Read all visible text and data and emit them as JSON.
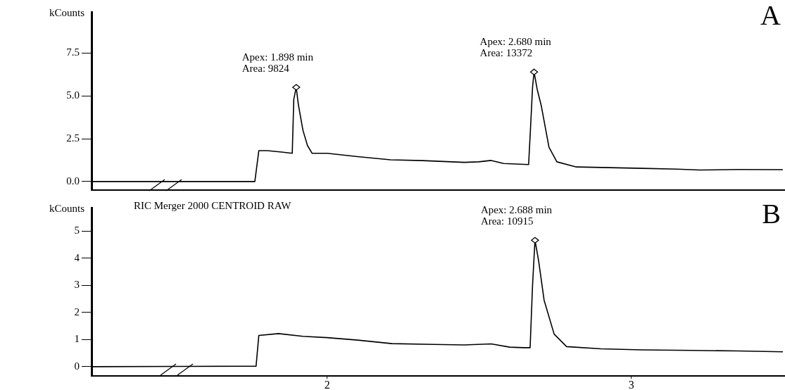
{
  "chart_data": [
    {
      "type": "line",
      "title": "A",
      "ylabel": "kCounts",
      "xlim": [
        1.225,
        3.505
      ],
      "ylim": [
        -0.5,
        9.9
      ],
      "yticks": [
        {
          "value": 0,
          "label": "0.0"
        },
        {
          "value": 2.5,
          "label": "2.5"
        },
        {
          "value": 5,
          "label": "5.0"
        },
        {
          "value": 7.5,
          "label": "7.5"
        }
      ],
      "tick_labels": "y",
      "series": [
        {
          "color": "#000000",
          "x": [
            1.225,
            1.762,
            1.775,
            1.803,
            1.85,
            1.885,
            1.89,
            1.898,
            1.905,
            1.92,
            1.935,
            1.95,
            2.0,
            2.1,
            2.208,
            2.313,
            2.45,
            2.498,
            2.539,
            2.58,
            2.662,
            2.668,
            2.675,
            2.68,
            2.69,
            2.704,
            2.729,
            2.755,
            2.819,
            2.9,
            3.035,
            3.15,
            3.225,
            3.35,
            3.498
          ],
          "values": [
            0,
            0,
            1.8,
            1.8,
            1.72,
            1.65,
            4.8,
            5.5,
            4.5,
            3.0,
            2.1,
            1.65,
            1.65,
            1.45,
            1.27,
            1.22,
            1.12,
            1.15,
            1.23,
            1.05,
            0.99,
            3.0,
            5.5,
            6.4,
            5.4,
            4.4,
            2.0,
            1.15,
            0.85,
            0.82,
            0.77,
            0.72,
            0.67,
            0.7,
            0.69
          ]
        }
      ],
      "annotations": [
        {
          "text": "Apex: 1.898 min\nArea: 9824",
          "x": 1.898,
          "y": 5.5
        },
        {
          "text": "Apex: 2.680 min\nArea: 13372",
          "x": 2.68,
          "y": 6.4
        }
      ]
    },
    {
      "type": "line",
      "title": "B",
      "subtitle": "RIC Merger 2000 CENTROID RAW",
      "ylabel": "kCounts",
      "xlim": [
        1.225,
        3.505
      ],
      "xticks": [
        2,
        3
      ],
      "ylim": [
        -0.34,
        5.86
      ],
      "yticks": [
        0,
        1,
        2,
        3,
        4,
        5
      ],
      "series": [
        {
          "color": "#000000",
          "x": [
            1.225,
            1.5,
            1.766,
            1.775,
            1.84,
            1.92,
            2.0,
            2.1,
            2.213,
            2.35,
            2.45,
            2.539,
            2.6,
            2.646,
            2.667,
            2.675,
            2.683,
            2.695,
            2.713,
            2.746,
            2.787,
            2.9,
            3.035,
            3.2,
            3.35,
            3.498
          ],
          "values": [
            0,
            0.01,
            0.02,
            1.15,
            1.22,
            1.12,
            1.07,
            0.98,
            0.85,
            0.82,
            0.8,
            0.84,
            0.72,
            0.7,
            0.7,
            3.0,
            4.66,
            3.9,
            2.45,
            1.2,
            0.74,
            0.66,
            0.62,
            0.6,
            0.58,
            0.55
          ]
        }
      ],
      "annotations": [
        {
          "text": "Apex: 2.688 min\nArea: 10915",
          "x": 2.683,
          "y": 4.66
        }
      ]
    }
  ]
}
